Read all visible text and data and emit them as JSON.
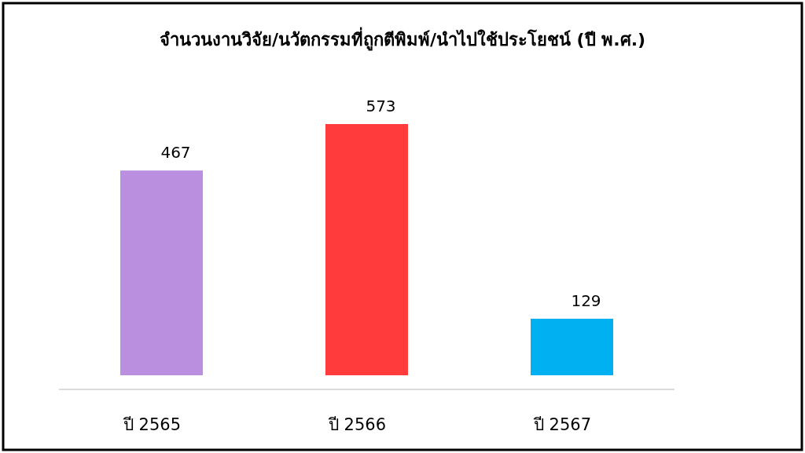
{
  "chart_data": {
    "type": "bar",
    "title": "จำนวนงานวิจัย/นวัตกรรมที่ถูกตีพิมพ์/นำไปใช้ประโยชน์ (ปี พ.ศ.)",
    "categories": [
      "ปี 2565",
      "ปี 2566",
      "ปี 2567"
    ],
    "values": [
      467,
      573,
      129
    ],
    "colors": [
      "#bb8fdf",
      "#ff3b3b",
      "#00b0f0"
    ],
    "data_labels": true
  }
}
